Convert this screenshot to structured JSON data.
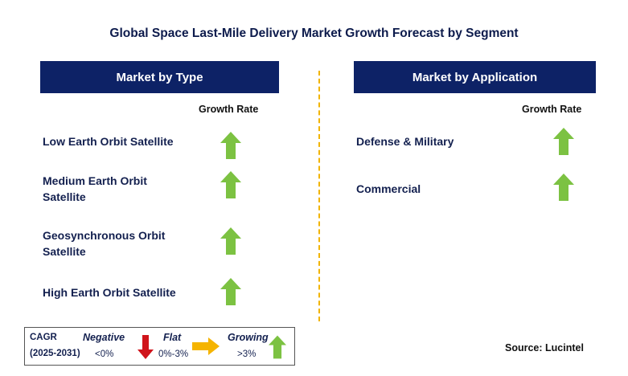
{
  "title": "Global Space Last-Mile Delivery Market Growth Forecast by Segment",
  "left_panel": {
    "header": "Market by Type",
    "growth_rate_label": "Growth Rate",
    "items": [
      {
        "line1": "Low Earth Orbit Satellite",
        "line2": "",
        "trend": "growing"
      },
      {
        "line1": "Medium Earth Orbit",
        "line2": "Satellite",
        "trend": "growing"
      },
      {
        "line1": "Geosynchronous Orbit",
        "line2": "Satellite",
        "trend": "growing"
      },
      {
        "line1": "High Earth Orbit Satellite",
        "line2": "",
        "trend": "growing"
      }
    ]
  },
  "right_panel": {
    "header": "Market by Application",
    "growth_rate_label": "Growth Rate",
    "items": [
      {
        "line1": "Defense & Military",
        "line2": "",
        "trend": "growing"
      },
      {
        "line1": "Commercial",
        "line2": "",
        "trend": "growing"
      }
    ]
  },
  "legend": {
    "cagr_label": "CAGR",
    "period": "(2025-2031)",
    "negative_label": "Negative",
    "negative_range": "<0%",
    "flat_label": "Flat",
    "flat_range": "0%-3%",
    "growing_label": "Growing",
    "growing_range": ">3%"
  },
  "source": "Source: Lucintel",
  "colors": {
    "header_bg": "#0d2266",
    "divider": "#f2b400",
    "growing_arrow": "#7cc242",
    "negative_arrow": "#d0141b",
    "flat_arrow": "#f5b400"
  },
  "chart_data": {
    "type": "table",
    "title": "Global Space Last-Mile Delivery Market Growth Forecast by Segment",
    "columns": [
      "Segment",
      "Growth Rate"
    ],
    "groups": [
      {
        "name": "Market by Type",
        "rows": [
          [
            "Low Earth Orbit Satellite",
            "Growing"
          ],
          [
            "Medium Earth Orbit Satellite",
            "Growing"
          ],
          [
            "Geosynchronous Orbit Satellite",
            "Growing"
          ],
          [
            "High Earth Orbit Satellite",
            "Growing"
          ]
        ]
      },
      {
        "name": "Market by Application",
        "rows": [
          [
            "Defense & Military",
            "Growing"
          ],
          [
            "Commercial",
            "Growing"
          ]
        ]
      }
    ],
    "legend": {
      "Negative": "<0%",
      "Flat": "0%-3%",
      "Growing": ">3%"
    }
  }
}
